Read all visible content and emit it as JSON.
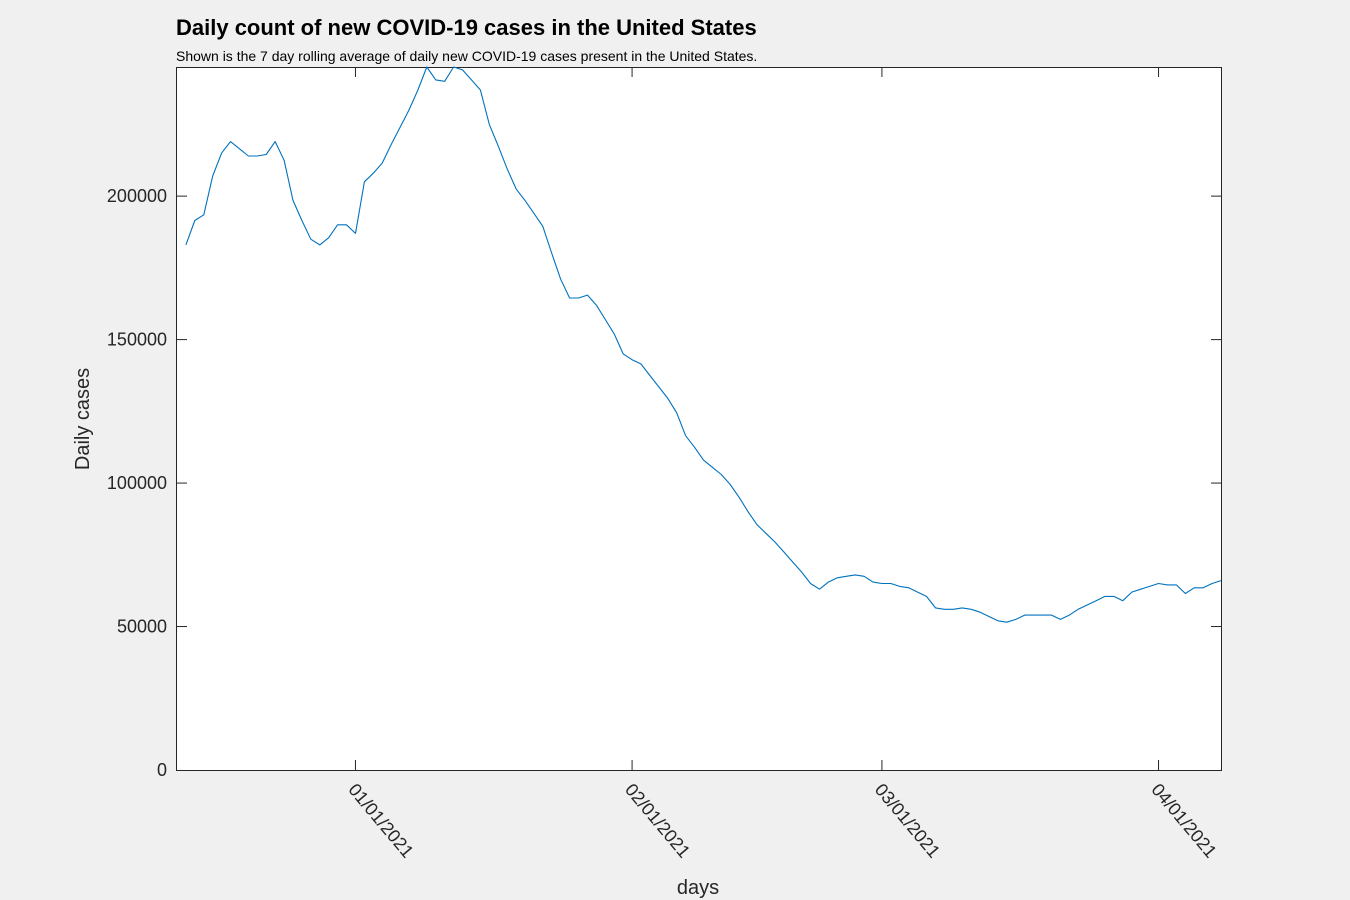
{
  "chart_data": {
    "type": "line",
    "title": "Daily count of new COVID-19 cases in the United States",
    "subtitle": "Shown is the 7 day rolling average of daily new COVID-19 cases present in the United States.",
    "xlabel": "days",
    "ylabel": "Daily cases",
    "ylim": [
      0,
      245000
    ],
    "yticks": [
      0,
      50000,
      100000,
      150000,
      200000
    ],
    "ytick_labels": [
      "0",
      "50000",
      "100000",
      "150000",
      "200000"
    ],
    "xticks": [
      {
        "day": 20,
        "label": "01/01/2021"
      },
      {
        "day": 51,
        "label": "02/01/2021"
      },
      {
        "day": 79,
        "label": "03/01/2021"
      },
      {
        "day": 110,
        "label": "04/01/2021"
      }
    ],
    "xlim": [
      0,
      117
    ],
    "grid": false,
    "series": [
      {
        "name": "7 day rolling average",
        "color": "#0072bd",
        "x": [
          1,
          2,
          3,
          4,
          5,
          6,
          7,
          8,
          9,
          10,
          11,
          12,
          13,
          14,
          15,
          16,
          17,
          18,
          19,
          20,
          21,
          22,
          23,
          24,
          25,
          26,
          27,
          28,
          29,
          30,
          31,
          32,
          33,
          34,
          35,
          36,
          37,
          38,
          39,
          40,
          41,
          42,
          43,
          44,
          45,
          46,
          47,
          48,
          49,
          50,
          51,
          52,
          53,
          54,
          55,
          56,
          57,
          58,
          59,
          60,
          61,
          62,
          63,
          64,
          65,
          66,
          67,
          68,
          69,
          70,
          71,
          72,
          73,
          74,
          75,
          76,
          77,
          78,
          79,
          80,
          81,
          82,
          83,
          84,
          85,
          86,
          87,
          88,
          89,
          90,
          91,
          92,
          93,
          94,
          95,
          96,
          97,
          98,
          99,
          100,
          101,
          102,
          103,
          104,
          105,
          106,
          107,
          108,
          109,
          110,
          111,
          112,
          113,
          114,
          115,
          116,
          117
        ],
        "values": [
          183000,
          191500,
          193500,
          207000,
          215000,
          219000,
          216500,
          214000,
          214000,
          214500,
          219000,
          212500,
          198500,
          191500,
          185000,
          183000,
          185500,
          190000,
          190000,
          187000,
          205000,
          208000,
          211500,
          218000,
          224000,
          230000,
          237000,
          245000,
          240500,
          240000,
          245000,
          244000,
          240500,
          237000,
          225000,
          217500,
          209500,
          202500,
          198500,
          194000,
          189500,
          180000,
          171000,
          164500,
          164500,
          165500,
          162000,
          157000,
          152000,
          145000,
          143000,
          141500,
          137500,
          133500,
          129500,
          124500,
          116500,
          112500,
          108000,
          105500,
          103000,
          99500,
          95000,
          90000,
          85500,
          82500,
          79500,
          76000,
          72500,
          69000,
          65000,
          63000,
          65500,
          67000,
          67500,
          68000,
          67500,
          65500,
          65000,
          65000,
          64000,
          63500,
          62000,
          60500,
          56500,
          56000,
          56000,
          56500,
          56000,
          55000,
          53500,
          52000,
          51500,
          52500,
          54000,
          54000,
          54000,
          54000,
          52500,
          54000,
          56000,
          57500,
          59000,
          60500,
          60500,
          59000,
          62000,
          63000,
          64000,
          65000,
          64500,
          64500,
          61500,
          63500,
          63500,
          65000,
          66000
        ]
      }
    ]
  }
}
